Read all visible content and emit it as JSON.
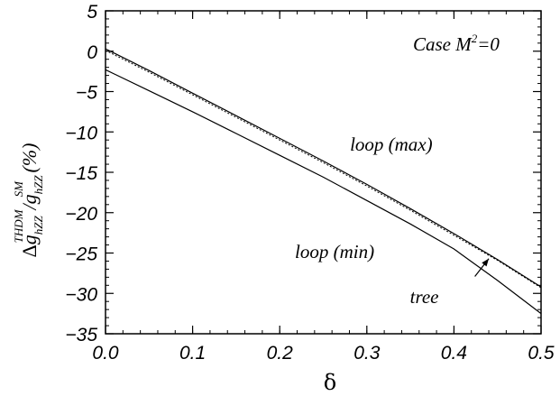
{
  "chart_data": {
    "type": "line",
    "title": "",
    "xlabel": "δ",
    "ylabel": {
      "delta": "Δ",
      "g1": "g",
      "sub1": "hZZ",
      "sup1": "THDM",
      "slash": "/",
      "g2": "g",
      "sub2": "hZZ",
      "sup2": "SM",
      "unit": " (%)"
    },
    "xlim": [
      0,
      0.5
    ],
    "ylim": [
      -35,
      5
    ],
    "xticks": [
      0,
      0.1,
      0.2,
      0.3,
      0.4,
      0.5
    ],
    "xtick_labels": [
      "0.0",
      "0.1",
      "0.2",
      "0.3",
      "0.4",
      "0.5"
    ],
    "yticks": [
      5,
      0,
      -5,
      -10,
      -15,
      -20,
      -25,
      -30,
      -35
    ],
    "ytick_labels": [
      "5",
      "0",
      "−5",
      "−10",
      "−15",
      "−20",
      "−25",
      "−30",
      "−35"
    ],
    "case_label": {
      "main": "Case M",
      "sup": "2",
      "rest": "=0"
    },
    "series": [
      {
        "name": "loop (max)",
        "style": "solid",
        "x": [
          0,
          0.05,
          0.1,
          0.15,
          0.2,
          0.25,
          0.3,
          0.35,
          0.4,
          0.45,
          0.5
        ],
        "y": [
          0.3,
          -2.4,
          -5.2,
          -8.0,
          -10.8,
          -13.6,
          -16.5,
          -19.5,
          -22.6,
          -25.8,
          -29.2
        ]
      },
      {
        "name": "tree",
        "style": "dotted",
        "x": [
          0,
          0.05,
          0.1,
          0.15,
          0.2,
          0.25,
          0.3,
          0.35,
          0.4,
          0.45,
          0.5
        ],
        "y": [
          0.1,
          -2.6,
          -5.4,
          -8.2,
          -11.0,
          -13.8,
          -16.7,
          -19.7,
          -22.8,
          -25.9,
          -29.3
        ]
      },
      {
        "name": "loop (min)",
        "style": "solid",
        "x": [
          0,
          0.05,
          0.1,
          0.15,
          0.2,
          0.25,
          0.3,
          0.35,
          0.4,
          0.45,
          0.5
        ],
        "y": [
          -2.3,
          -4.9,
          -7.5,
          -10.2,
          -12.9,
          -15.6,
          -18.5,
          -21.4,
          -24.5,
          -28.4,
          -32.5
        ]
      }
    ],
    "annotations": [
      {
        "text": "loop (max)",
        "x": 0.328,
        "y": -12.3
      },
      {
        "text": "loop (min)",
        "x": 0.263,
        "y": -25.6
      },
      {
        "text": "tree",
        "x": 0.366,
        "y": -31.2
      }
    ],
    "arrow": {
      "from": [
        0.424,
        -27.9
      ],
      "to": [
        0.44,
        -25.7
      ]
    },
    "legend": "none",
    "grid": false
  }
}
